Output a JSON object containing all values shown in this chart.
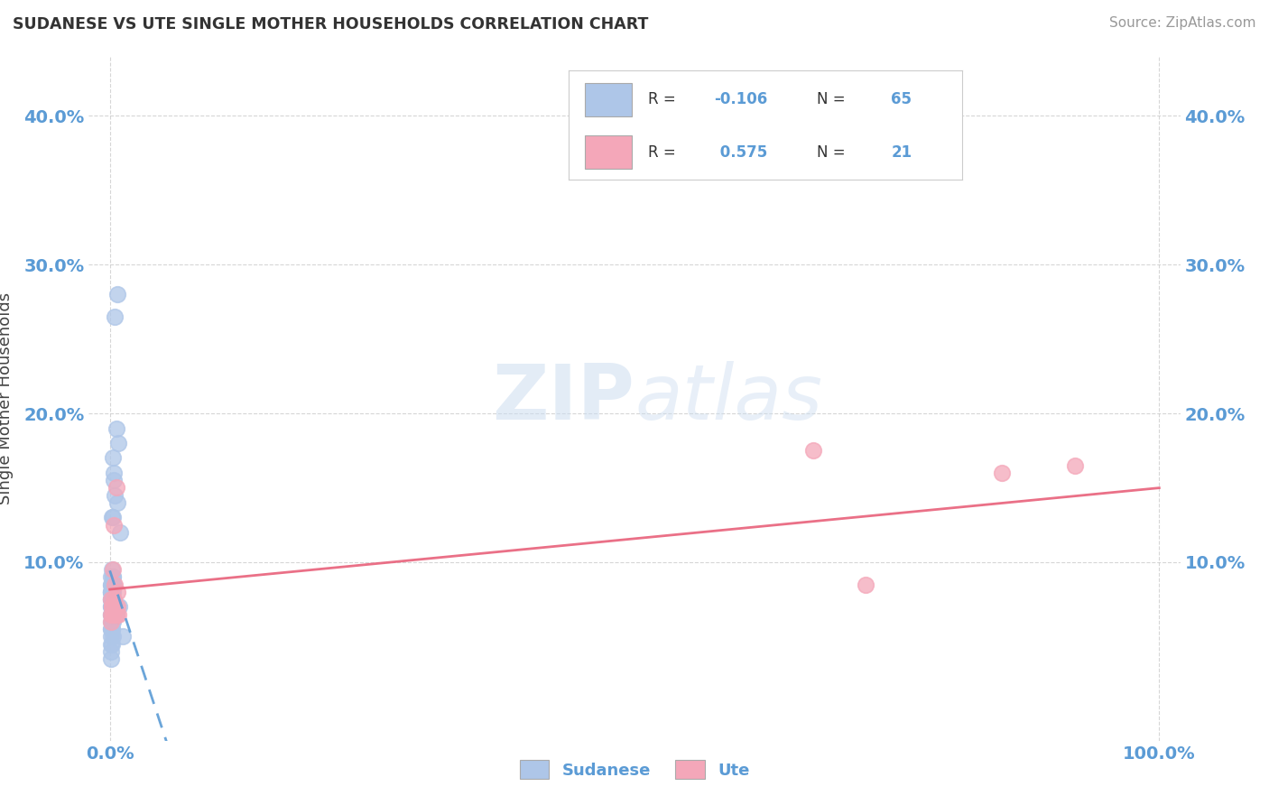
{
  "title": "SUDANESE VS UTE SINGLE MOTHER HOUSEHOLDS CORRELATION CHART",
  "source": "Source: ZipAtlas.com",
  "ylabel_label": "Single Mother Households",
  "sudanese_color": "#aec6e8",
  "ute_color": "#f4a7b9",
  "sudanese_line_color": "#5b9bd5",
  "ute_line_color": "#e8617a",
  "watermark_zip": "ZIP",
  "watermark_atlas": "atlas",
  "background_color": "#ffffff",
  "sudanese_R": "-0.106",
  "sudanese_N": "65",
  "ute_R": "0.575",
  "ute_N": "21",
  "sudanese_x": [
    0.001,
    0.002,
    0.003,
    0.001,
    0.002,
    0.003,
    0.004,
    0.001,
    0.002,
    0.003,
    0.001,
    0.002,
    0.001,
    0.003,
    0.002,
    0.001,
    0.002,
    0.001,
    0.002,
    0.003,
    0.001,
    0.002,
    0.001,
    0.003,
    0.001,
    0.002,
    0.001,
    0.002,
    0.003,
    0.001,
    0.002,
    0.001,
    0.003,
    0.001,
    0.002,
    0.001,
    0.002,
    0.001,
    0.003,
    0.002,
    0.001,
    0.002,
    0.001,
    0.002,
    0.001,
    0.003,
    0.002,
    0.001,
    0.002,
    0.001,
    0.006,
    0.008,
    0.004,
    0.005,
    0.003,
    0.007,
    0.002,
    0.01,
    0.004,
    0.003,
    0.012,
    0.006,
    0.009,
    0.007,
    0.005
  ],
  "sudanese_y": [
    0.08,
    0.085,
    0.09,
    0.075,
    0.07,
    0.08,
    0.085,
    0.09,
    0.095,
    0.07,
    0.075,
    0.08,
    0.085,
    0.09,
    0.07,
    0.075,
    0.08,
    0.085,
    0.07,
    0.075,
    0.08,
    0.065,
    0.07,
    0.075,
    0.08,
    0.085,
    0.065,
    0.07,
    0.075,
    0.08,
    0.065,
    0.07,
    0.075,
    0.065,
    0.07,
    0.06,
    0.065,
    0.055,
    0.06,
    0.065,
    0.055,
    0.06,
    0.05,
    0.055,
    0.045,
    0.05,
    0.055,
    0.04,
    0.045,
    0.035,
    0.19,
    0.18,
    0.155,
    0.145,
    0.17,
    0.14,
    0.13,
    0.12,
    0.16,
    0.13,
    0.05,
    0.065,
    0.07,
    0.28,
    0.265
  ],
  "ute_x": [
    0.001,
    0.002,
    0.001,
    0.003,
    0.002,
    0.001,
    0.003,
    0.005,
    0.004,
    0.006,
    0.007,
    0.008,
    0.006,
    0.004,
    0.007,
    0.005,
    0.003,
    0.67,
    0.72,
    0.85,
    0.92
  ],
  "ute_y": [
    0.065,
    0.07,
    0.075,
    0.065,
    0.07,
    0.06,
    0.065,
    0.07,
    0.075,
    0.065,
    0.07,
    0.065,
    0.15,
    0.125,
    0.08,
    0.085,
    0.095,
    0.175,
    0.085,
    0.16,
    0.165
  ],
  "xlim": [
    -0.02,
    1.02
  ],
  "ylim": [
    -0.02,
    0.44
  ],
  "xticks": [
    0.0,
    1.0
  ],
  "yticks": [
    0.1,
    0.2,
    0.3,
    0.4
  ],
  "ytick_labels": [
    "10.0%",
    "20.0%",
    "30.0%",
    "40.0%"
  ],
  "xtick_labels": [
    "0.0%",
    "100.0%"
  ]
}
